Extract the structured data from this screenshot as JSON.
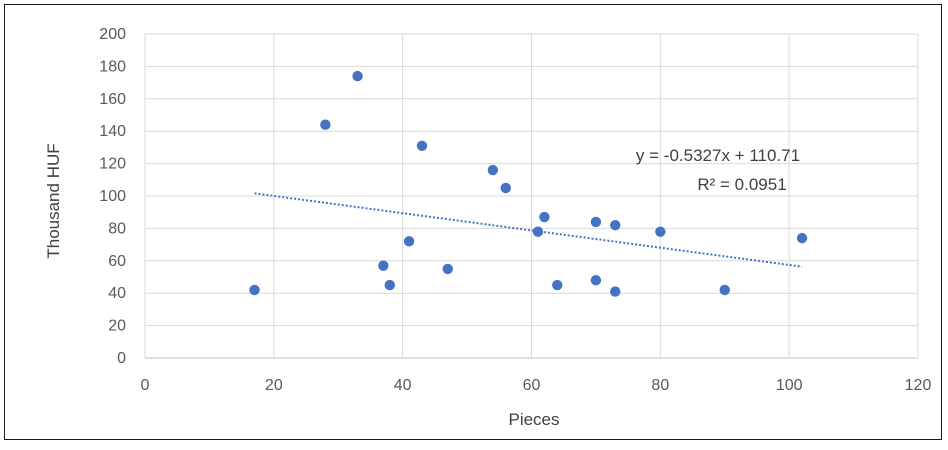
{
  "chart_data": {
    "type": "scatter",
    "title": "",
    "xlabel": "Pieces",
    "ylabel": "Thousand HUF",
    "xlim": [
      0,
      120
    ],
    "ylim": [
      0,
      200
    ],
    "xticks": [
      0,
      20,
      40,
      60,
      80,
      100,
      120
    ],
    "yticks": [
      0,
      20,
      40,
      60,
      80,
      100,
      120,
      140,
      160,
      180,
      200
    ],
    "grid": true,
    "legend": "none",
    "marker_color": "#4472C4",
    "series": [
      {
        "points": [
          {
            "x": 17,
            "y": 42
          },
          {
            "x": 28,
            "y": 144
          },
          {
            "x": 33,
            "y": 174
          },
          {
            "x": 37,
            "y": 57
          },
          {
            "x": 38,
            "y": 45
          },
          {
            "x": 41,
            "y": 72
          },
          {
            "x": 43,
            "y": 131
          },
          {
            "x": 47,
            "y": 55
          },
          {
            "x": 54,
            "y": 116
          },
          {
            "x": 56,
            "y": 105
          },
          {
            "x": 61,
            "y": 78
          },
          {
            "x": 62,
            "y": 87
          },
          {
            "x": 64,
            "y": 45
          },
          {
            "x": 70,
            "y": 84
          },
          {
            "x": 70,
            "y": 48
          },
          {
            "x": 73,
            "y": 82
          },
          {
            "x": 73,
            "y": 41
          },
          {
            "x": 80,
            "y": 78
          },
          {
            "x": 90,
            "y": 42
          },
          {
            "x": 102,
            "y": 74
          }
        ]
      }
    ],
    "trendline": {
      "type": "linear",
      "slope": -0.5327,
      "intercept": 110.71,
      "x_range": [
        17,
        102
      ],
      "color": "#4472C4",
      "style": "dotted",
      "equation_label": "y = -0.5327x + 110.71",
      "r2_label": "R² = 0.0951"
    }
  }
}
